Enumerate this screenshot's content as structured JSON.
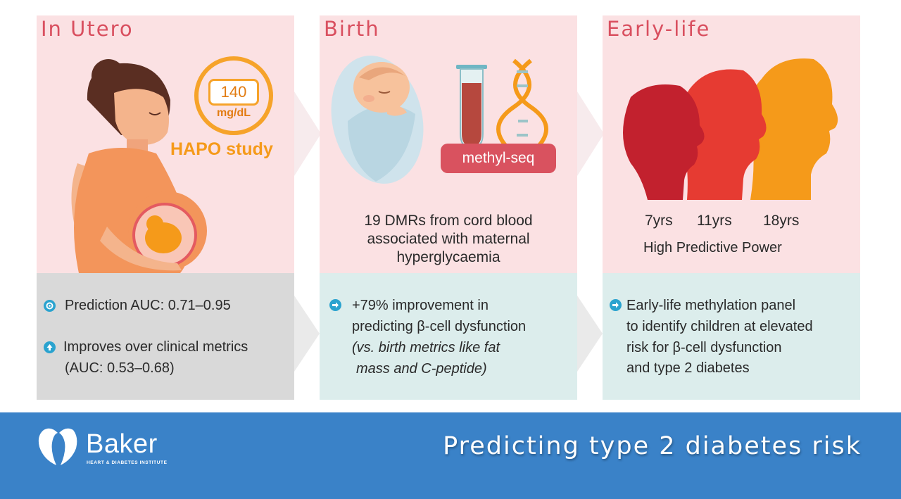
{
  "panels": {
    "utero": {
      "title": "In Utero",
      "hapo_value": "140",
      "hapo_unit": "mg/dL",
      "hapo_label": "HAPO study",
      "bullets": [
        {
          "line1": "Prediction AUC: 0.71–0.95"
        },
        {
          "line1": "Improves over clinical metrics",
          "line2": "(AUC: 0.53–0.68)"
        }
      ]
    },
    "birth": {
      "title": "Birth",
      "pill_label": "methyl-seq",
      "desc_line1": "19 DMRs from cord blood",
      "desc_line2": "associated with maternal",
      "desc_line3": "hyperglycaemia",
      "bullet_line1": "+79% improvement in",
      "bullet_line2": "predicting β-cell dysfunction",
      "bullet_line3": "(vs. birth metrics like fat",
      "bullet_line4": "mass and C-peptide)"
    },
    "early": {
      "title": "Early-life",
      "ages": [
        "7yrs",
        "11yrs",
        "18yrs"
      ],
      "power_label": "High Predictive Power",
      "bullet_line1": "Early-life methylation panel",
      "bullet_line2": "to identify children at elevated",
      "bullet_line3": "risk for β-cell dysfunction",
      "bullet_line4": "and type 2 diabetes"
    }
  },
  "footer": {
    "logo_name": "Baker",
    "logo_subtitle": "HEART & DIABETES INSTITUTE",
    "title": "Predicting type 2 diabetes risk"
  },
  "colors": {
    "panel_pink": "#fbe1e3",
    "panel_grey": "#d9d9d9",
    "panel_teal": "#dcedec",
    "accent_red": "#d94f5f",
    "accent_orange": "#f6a32a",
    "bullet_blue": "#2aa3cf",
    "footer_blue": "#3a82c8"
  }
}
